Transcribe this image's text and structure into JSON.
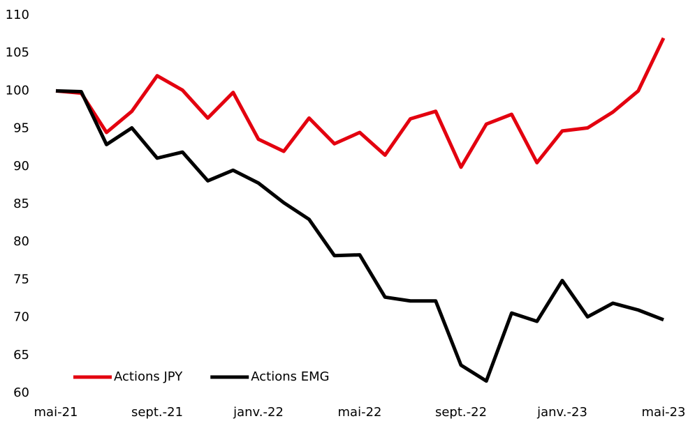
{
  "chart_data": {
    "type": "line",
    "categories": [
      "mai-21",
      null,
      null,
      null,
      "sept.-21",
      null,
      null,
      null,
      "janv.-22",
      null,
      null,
      null,
      "mai-22",
      null,
      null,
      null,
      "sept.-22",
      null,
      null,
      null,
      "janv.-23",
      null,
      null,
      null,
      "mai-23"
    ],
    "series": [
      {
        "name": "Actions JPY",
        "color": "#e3000f",
        "values": [
          100,
          99.7,
          94.5,
          97.3,
          102,
          100.1,
          96.4,
          99.8,
          93.6,
          92,
          96.4,
          93,
          94.5,
          91.5,
          96.3,
          97.3,
          89.9,
          95.6,
          96.9,
          90.5,
          94.7,
          95.1,
          97.2,
          100,
          107
        ]
      },
      {
        "name": "Actions EMG",
        "color": "#000000",
        "values": [
          100,
          99.9,
          92.9,
          95.1,
          91.1,
          91.9,
          88.1,
          89.5,
          87.8,
          85.2,
          83,
          78.2,
          78.3,
          72.7,
          72.2,
          72.2,
          63.7,
          61.6,
          70.6,
          69.5,
          74.9,
          70.1,
          71.9,
          71,
          69.7
        ]
      }
    ],
    "ylim": [
      60,
      110
    ],
    "yticks": [
      60,
      65,
      70,
      75,
      80,
      85,
      90,
      95,
      100,
      105,
      110
    ],
    "grid": false,
    "legend": "lower left"
  }
}
